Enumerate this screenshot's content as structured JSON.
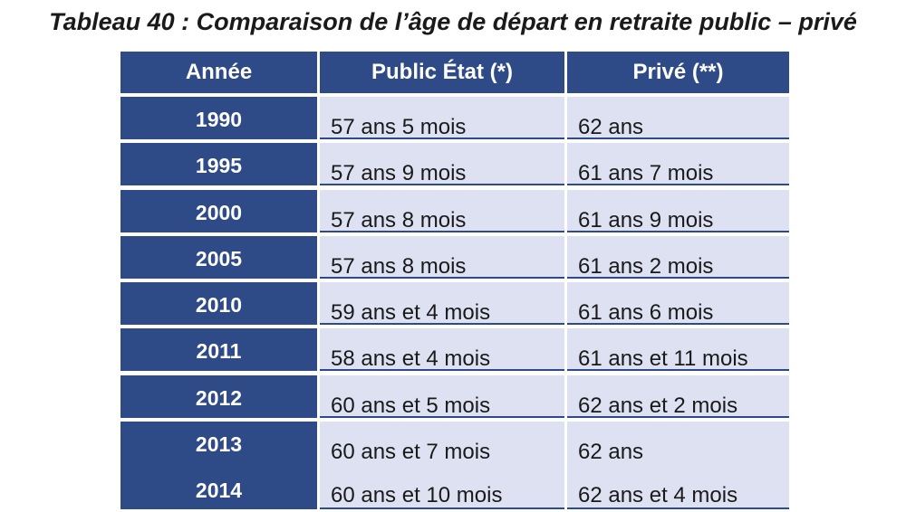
{
  "title": "Tableau 40 : Comparaison de l’âge de départ en retraite public – privé",
  "table": {
    "headers": [
      "Année",
      "Public État (*)",
      "Privé (**)"
    ],
    "rows": [
      {
        "year": "1990",
        "public": "57 ans 5 mois",
        "prive": "62 ans"
      },
      {
        "year": "1995",
        "public": "57 ans 9 mois",
        "prive": "61 ans 7 mois"
      },
      {
        "year": "2000",
        "public": "57 ans 8 mois",
        "prive": "61 ans 9 mois"
      },
      {
        "year": "2005",
        "public": "57 ans 8 mois",
        "prive": "61 ans 2 mois"
      },
      {
        "year": "2010",
        "public": "59 ans et 4 mois",
        "prive": "61 ans 6 mois"
      },
      {
        "year": "2011",
        "public": "58 ans et 4 mois",
        "prive": "61 ans et 11 mois"
      },
      {
        "year": "2012",
        "public": "60 ans et 5 mois",
        "prive": "62 ans et 2 mois"
      }
    ],
    "merged_row": {
      "years": [
        "2013",
        "2014"
      ],
      "public": [
        "60 ans et 7 mois",
        "60 ans et 10 mois"
      ],
      "prive": [
        "62 ans",
        "62 ans et 4 mois"
      ]
    }
  },
  "colors": {
    "header_bg": "#2e4a87",
    "cell_bg": "#dde1f2",
    "text": "#1a1a1a"
  }
}
